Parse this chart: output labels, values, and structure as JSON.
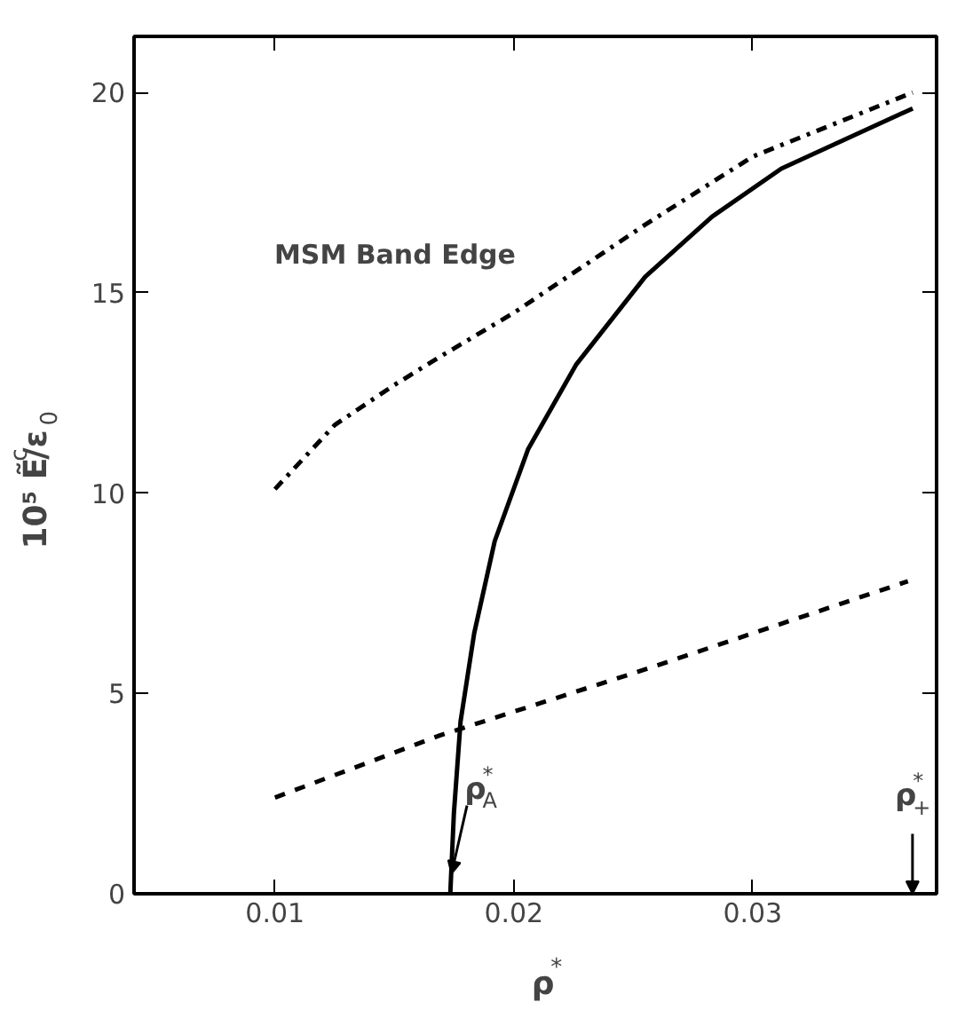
{
  "chart_data": {
    "type": "line",
    "xlabel": "ρ$^{*}$",
    "ylabel": "10⁵ Ẽ$^{c}$/ε$_{0}$",
    "xlim": [
      0.0041,
      0.0377
    ],
    "ylim": [
      0,
      21.4
    ],
    "xticks": [
      0.01,
      0.02,
      0.03
    ],
    "yticks": [
      0,
      5,
      10,
      15,
      20
    ],
    "grid": false,
    "series": [
      {
        "color": "#000000",
        "line_style": "dashdot",
        "x": [
          0.01,
          0.0125,
          0.015,
          0.0169,
          0.02,
          0.0255,
          0.03,
          0.0367
        ],
        "values": [
          10.1,
          11.7,
          12.7,
          13.4,
          14.5,
          16.7,
          18.4,
          20.0
        ]
      },
      {
        "color": "#000000",
        "line_style": "solid",
        "x": [
          0.01734,
          0.01749,
          0.01777,
          0.01834,
          0.0192,
          0.0206,
          0.0226,
          0.0255,
          0.0283,
          0.0312,
          0.0367
        ],
        "values": [
          0,
          2.0,
          4.3,
          6.5,
          8.8,
          11.1,
          13.2,
          15.4,
          16.9,
          18.1,
          19.6
        ]
      },
      {
        "color": "#000000",
        "line_style": "dashed",
        "x": [
          0.01,
          0.0169,
          0.0255,
          0.0365
        ],
        "values": [
          2.4,
          3.95,
          5.6,
          7.8
        ]
      }
    ],
    "annotations": [
      "MSM Band Edge",
      {
        "text": "ρ$^{*}$$_{A}$",
        "x": 0.01734,
        "y": 0
      },
      "ρ$^{*}$$_{+}$"
    ]
  }
}
